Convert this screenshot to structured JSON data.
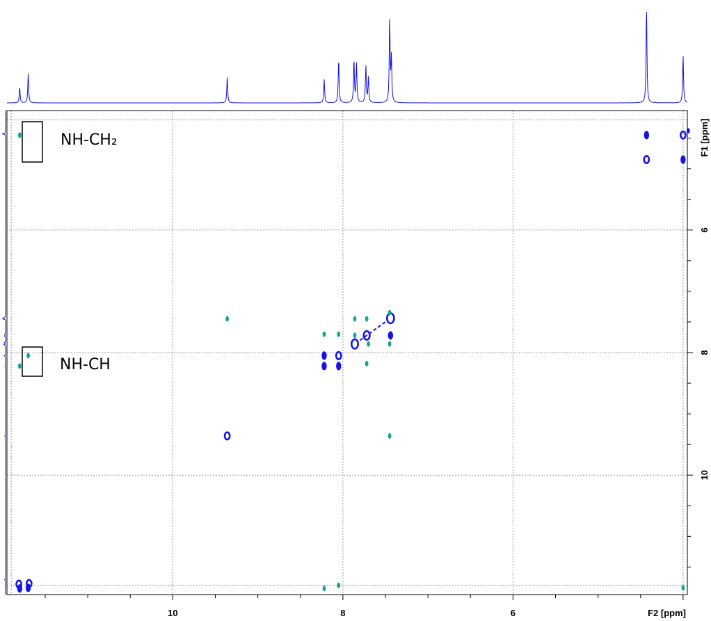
{
  "chart_data": {
    "type": "scatter",
    "subtype": "2D NMR contour spectrum",
    "x_axis": {
      "label": "F2 [ppm]",
      "range": [
        11.95,
        3.95
      ],
      "reversed": true,
      "ticks": [
        10,
        8,
        6
      ],
      "tick_labels": [
        "10",
        "8",
        "6"
      ]
    },
    "y_axis": {
      "label": "F1 [ppm]",
      "range": [
        4.05,
        11.95
      ],
      "reversed": true,
      "position": "right",
      "ticks": [
        6,
        8,
        10
      ],
      "tick_labels": [
        "6",
        "8",
        "10"
      ]
    },
    "grid": true,
    "colors": {
      "positive": "#1515e6",
      "negative": "#17a396",
      "projection": "#1010e0",
      "grid": "#999999"
    },
    "projection_peaks": [
      {
        "x": 11.8,
        "h": 0.16
      },
      {
        "x": 11.7,
        "h": 0.3
      },
      {
        "x": 9.36,
        "h": 0.27
      },
      {
        "x": 8.22,
        "h": 0.24
      },
      {
        "x": 8.05,
        "h": 0.45
      },
      {
        "x": 7.87,
        "h": 0.44
      },
      {
        "x": 7.84,
        "h": 0.4
      },
      {
        "x": 7.73,
        "h": 0.38
      },
      {
        "x": 7.7,
        "h": 0.26
      },
      {
        "x": 7.45,
        "h": 0.85
      },
      {
        "x": 7.43,
        "h": 0.45
      },
      {
        "x": 4.43,
        "h": 0.99
      },
      {
        "x": 4.0,
        "h": 0.49
      }
    ],
    "series": [
      {
        "sign": "positive",
        "points": [
          {
            "x": 11.8,
            "y": 11.85,
            "style": "filled",
            "size": 1
          },
          {
            "x": 11.7,
            "y": 11.84,
            "style": "filled",
            "size": 1
          },
          {
            "x": 11.81,
            "y": 11.78,
            "style": "ring",
            "size": 1
          },
          {
            "x": 11.69,
            "y": 11.77,
            "style": "ring",
            "size": 1
          },
          {
            "x": 9.36,
            "y": 9.36,
            "style": "ring",
            "size": 1
          },
          {
            "x": 8.22,
            "y": 8.05,
            "style": "filled",
            "size": 1
          },
          {
            "x": 8.22,
            "y": 8.22,
            "style": "filled",
            "size": 1
          },
          {
            "x": 8.05,
            "y": 8.05,
            "style": "ring",
            "size": 1
          },
          {
            "x": 8.05,
            "y": 8.22,
            "style": "filled",
            "size": 1
          },
          {
            "x": 7.86,
            "y": 7.86,
            "style": "ring",
            "size": 1.3
          },
          {
            "x": 7.72,
            "y": 7.72,
            "style": "ring",
            "size": 1.2
          },
          {
            "x": 7.44,
            "y": 7.44,
            "style": "ring",
            "size": 1.4
          },
          {
            "x": 7.44,
            "y": 7.72,
            "style": "filled",
            "size": 1
          },
          {
            "x": 4.43,
            "y": 4.45,
            "style": "filled",
            "size": 1
          },
          {
            "x": 4.43,
            "y": 4.85,
            "style": "ring",
            "size": 1
          },
          {
            "x": 4.0,
            "y": 4.45,
            "style": "ring",
            "size": 1
          },
          {
            "x": 4.0,
            "y": 4.85,
            "style": "filled",
            "size": 1
          },
          {
            "x": 3.94,
            "y": 4.38,
            "style": "filled",
            "size": 0.6
          }
        ]
      },
      {
        "sign": "negative",
        "points": [
          {
            "x": 11.8,
            "y": 4.45
          },
          {
            "x": 11.8,
            "y": 8.22
          },
          {
            "x": 11.7,
            "y": 8.05
          },
          {
            "x": 9.36,
            "y": 7.45
          },
          {
            "x": 8.22,
            "y": 7.7
          },
          {
            "x": 8.22,
            "y": 11.85
          },
          {
            "x": 8.05,
            "y": 7.7
          },
          {
            "x": 8.05,
            "y": 11.8
          },
          {
            "x": 7.86,
            "y": 7.45
          },
          {
            "x": 7.86,
            "y": 7.72
          },
          {
            "x": 7.72,
            "y": 7.45
          },
          {
            "x": 7.7,
            "y": 7.86
          },
          {
            "x": 7.72,
            "y": 8.18
          },
          {
            "x": 7.45,
            "y": 7.35
          },
          {
            "x": 7.45,
            "y": 7.86
          },
          {
            "x": 7.45,
            "y": 9.36
          },
          {
            "x": 4.0,
            "y": 11.84
          }
        ]
      }
    ],
    "annotations": [
      {
        "text": "NH-CH₂",
        "box_x": [
          11.9,
          11.65
        ],
        "box_y": [
          4.15,
          4.83
        ]
      },
      {
        "text": "NH-CH",
        "box_x": [
          11.9,
          11.65
        ],
        "box_y": [
          7.93,
          8.45
        ]
      }
    ]
  }
}
